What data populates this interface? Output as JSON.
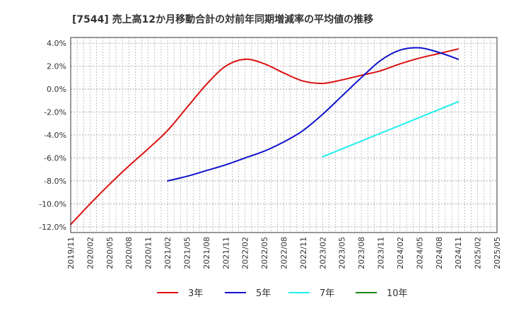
{
  "chart_data": {
    "type": "line",
    "title": "[7544]  売上高12か月移動合計の対前年同期増減率の平均値の推移",
    "xlabel": "",
    "ylabel": "",
    "ylim": [
      -12.5,
      4.5
    ],
    "yticks": [
      4,
      2,
      0,
      -2,
      -4,
      -6,
      -8,
      -10,
      -12
    ],
    "ytick_labels": [
      "4.0%",
      "2.0%",
      "0.0%",
      "-2.0%",
      "-4.0%",
      "-6.0%",
      "-8.0%",
      "-10.0%",
      "-12.0%"
    ],
    "x_start": "2019/11",
    "x_end": "2025/05",
    "xtick_labels": [
      "2019/11",
      "2020/02",
      "2020/05",
      "2020/08",
      "2020/11",
      "2021/02",
      "2021/05",
      "2021/08",
      "2021/11",
      "2022/02",
      "2022/05",
      "2022/08",
      "2022/11",
      "2023/02",
      "2023/05",
      "2023/08",
      "2023/11",
      "2024/02",
      "2024/05",
      "2024/08",
      "2024/11",
      "2025/02",
      "2025/05"
    ],
    "grid": true,
    "legend_position": "bottom",
    "series": [
      {
        "name": "3年",
        "color": "#dd1111",
        "x": [
          "2019/11",
          "2020/02",
          "2020/05",
          "2020/08",
          "2020/11",
          "2021/02",
          "2021/05",
          "2021/08",
          "2021/11",
          "2022/02",
          "2022/05",
          "2022/08",
          "2022/11",
          "2023/02",
          "2023/05",
          "2023/08",
          "2023/11",
          "2024/02",
          "2024/05",
          "2024/08",
          "2024/11"
        ],
        "values": [
          -11.8,
          -10.0,
          -8.3,
          -6.7,
          -5.2,
          -3.6,
          -1.6,
          0.4,
          2.0,
          2.6,
          2.2,
          1.4,
          0.7,
          0.5,
          0.8,
          1.2,
          1.6,
          2.2,
          2.7,
          3.1,
          3.5
        ]
      },
      {
        "name": "5年",
        "color": "#1111cc",
        "x": [
          "2021/02",
          "2021/05",
          "2021/08",
          "2021/11",
          "2022/02",
          "2022/05",
          "2022/08",
          "2022/11",
          "2023/02",
          "2023/05",
          "2023/08",
          "2023/11",
          "2024/02",
          "2024/05",
          "2024/08",
          "2024/11"
        ],
        "values": [
          -8.0,
          -7.6,
          -7.1,
          -6.6,
          -6.0,
          -5.4,
          -4.6,
          -3.6,
          -2.2,
          -0.6,
          1.0,
          2.5,
          3.4,
          3.6,
          3.2,
          2.6
        ]
      },
      {
        "name": "7年",
        "color": "#22eeee",
        "x": [
          "2023/02",
          "2024/11"
        ],
        "values": [
          -5.9,
          -1.1
        ]
      },
      {
        "name": "10年",
        "color": "#118811",
        "x": [],
        "values": []
      }
    ]
  }
}
